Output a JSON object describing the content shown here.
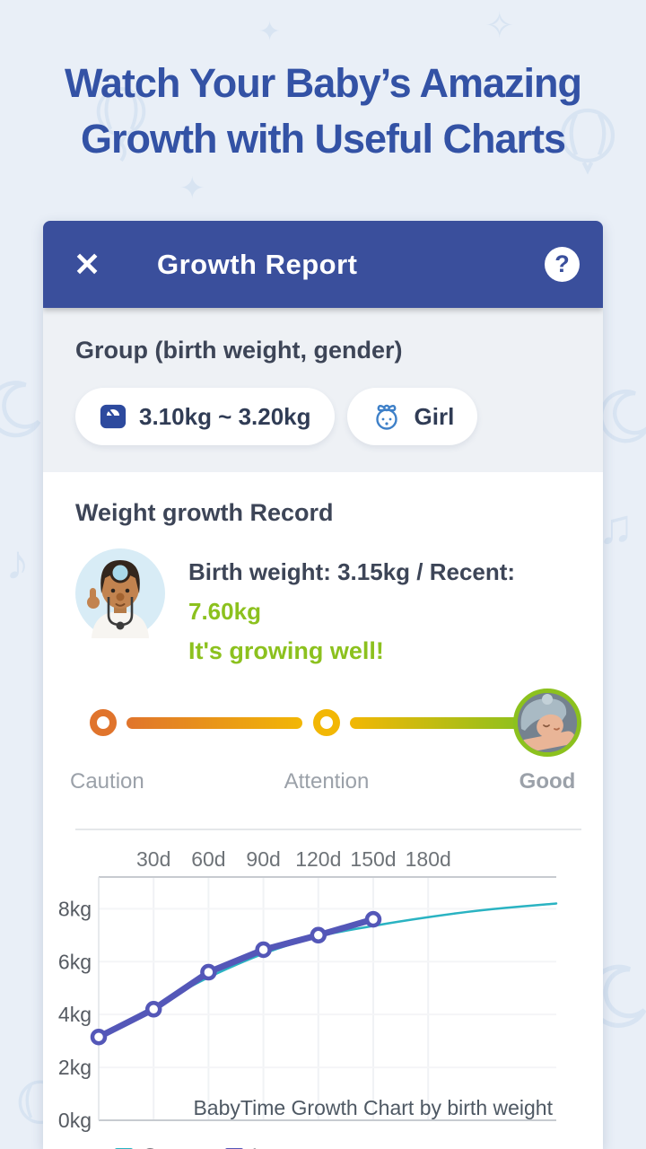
{
  "hero": {
    "title_line1": "Watch Your Baby’s Amazing",
    "title_line2": "Growth with Useful Charts"
  },
  "header": {
    "title": "Growth Report",
    "close_glyph": "✕",
    "help_glyph": "?"
  },
  "group_section": {
    "heading": "Group (birth weight, gender)",
    "weight_range_pill": "3.10kg ~ 3.20kg",
    "gender_pill": "Girl"
  },
  "weight_section": {
    "heading": "Weight growth Record",
    "summary_prefix": "Birth weight: 3.15kg / Recent: ",
    "recent_value": "7.60kg",
    "status_message": "It's growing well!"
  },
  "gauge": {
    "labels": [
      "Caution",
      "Attention",
      "Good"
    ],
    "current_status": "Good"
  },
  "icons": {
    "close": "close-icon",
    "help": "question-mark-icon",
    "scale": "weight-scale-icon",
    "girl": "girl-face-icon",
    "doctor": "doctor-avatar",
    "baby": "sleeping-baby-photo"
  },
  "colors": {
    "header_blue": "#3A4F9C",
    "headline_blue": "#3352A5",
    "success_green": "#8CC11E",
    "caution_orange": "#E0742C",
    "attention_yellow": "#F2B705",
    "group_teal": "#2AB3C2",
    "love_purple": "#5457B8"
  },
  "chart_data": {
    "type": "line",
    "caption": "BabyTime Growth Chart by birth weight",
    "x_unit": "days",
    "y_unit": "kg",
    "xlim": [
      0,
      250
    ],
    "ylim": [
      0,
      9.2
    ],
    "x_tick_values": [
      30,
      60,
      90,
      120,
      150,
      180
    ],
    "x_tick_labels": [
      "30d",
      "60d",
      "90d",
      "120d",
      "150d",
      "180d"
    ],
    "y_tick_values": [
      0,
      2,
      4,
      6,
      8
    ],
    "y_tick_labels": [
      "0kg",
      "2kg",
      "4kg",
      "6kg",
      "8kg"
    ],
    "grid": true,
    "legend_position": "bottom-left",
    "series": [
      {
        "name": "Group",
        "color": "#2AB3C2",
        "width": 2.5,
        "smooth": true,
        "marker": false,
        "x": [
          0,
          30,
          60,
          90,
          120,
          150,
          180,
          210,
          250
        ],
        "y": [
          3.15,
          4.3,
          5.4,
          6.3,
          6.95,
          7.35,
          7.68,
          7.95,
          8.2
        ]
      },
      {
        "name": "Love",
        "color": "#5457B8",
        "width": 7,
        "smooth": false,
        "marker": true,
        "x": [
          0,
          30,
          60,
          90,
          120,
          150
        ],
        "y": [
          3.15,
          4.2,
          5.6,
          6.45,
          7.0,
          7.6
        ]
      }
    ]
  }
}
